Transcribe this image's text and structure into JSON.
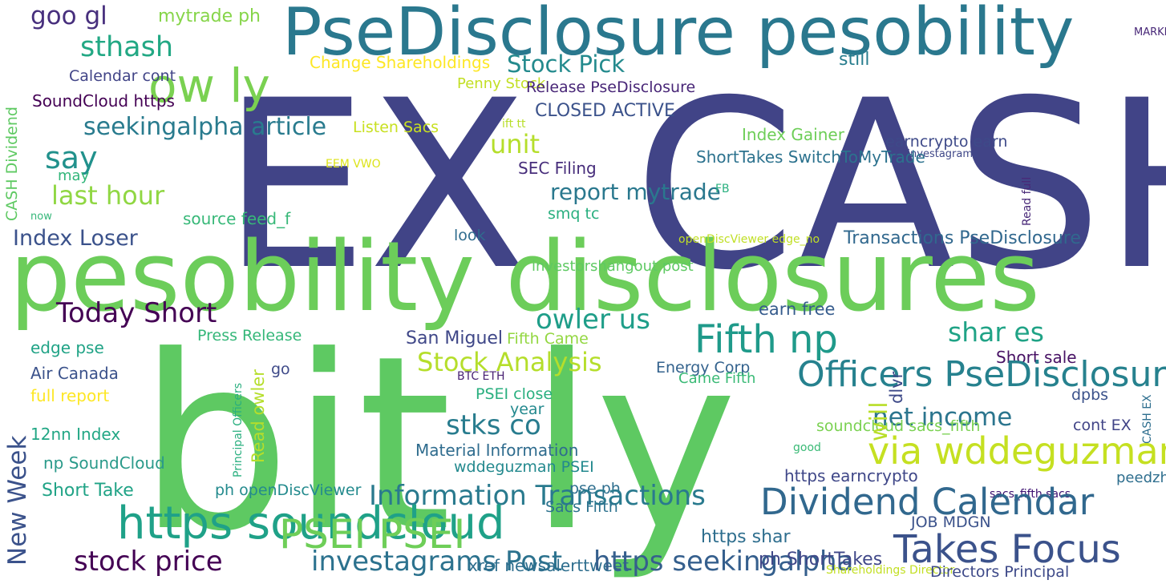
{
  "words": [
    {
      "id": "ex",
      "text": "EX"
    },
    {
      "id": "cash",
      "text": "CASH"
    },
    {
      "id": "bitly",
      "text": "bit ly"
    },
    {
      "id": "pesobility-disclosures",
      "text": "pesobility disclosures"
    },
    {
      "id": "psedisclosure-pesobility",
      "text": "PseDisclosure pesobility"
    },
    {
      "id": "goo-gl",
      "text": "goo gl"
    },
    {
      "id": "mytrade-ph",
      "text": "mytrade ph"
    },
    {
      "id": "sthash",
      "text": "sthash"
    },
    {
      "id": "ow-ly",
      "text": "ow ly"
    },
    {
      "id": "calendar-cont",
      "text": "Calendar cont"
    },
    {
      "id": "soundcloud-https",
      "text": "SoundCloud https"
    },
    {
      "id": "seekingalpha-article",
      "text": "seekingalpha article"
    },
    {
      "id": "say",
      "text": "say"
    },
    {
      "id": "may",
      "text": "may"
    },
    {
      "id": "last-hour",
      "text": "last hour"
    },
    {
      "id": "now",
      "text": "now"
    },
    {
      "id": "source-feed-f",
      "text": "source feed_f"
    },
    {
      "id": "index-loser",
      "text": "Index Loser"
    },
    {
      "id": "cash-dividend",
      "text": "CASH Dividend"
    },
    {
      "id": "new-week",
      "text": "New Week"
    },
    {
      "id": "change-shareholdings",
      "text": "Change Shareholdings"
    },
    {
      "id": "stock-pick",
      "text": "Stock Pick"
    },
    {
      "id": "penny-stock",
      "text": "Penny Stock"
    },
    {
      "id": "release-psedisclosure",
      "text": "Release PseDisclosure"
    },
    {
      "id": "closed-active",
      "text": "CLOSED ACTIVE"
    },
    {
      "id": "listen-sacs",
      "text": "Listen Sacs"
    },
    {
      "id": "ift-tt",
      "text": "ift tt"
    },
    {
      "id": "unit",
      "text": "unit"
    },
    {
      "id": "eem-vwo",
      "text": "EEM VWO"
    },
    {
      "id": "sec-filing",
      "text": "SEC Filing"
    },
    {
      "id": "report-mytrade",
      "text": "report mytrade"
    },
    {
      "id": "smq-tc",
      "text": "smq tc"
    },
    {
      "id": "look",
      "text": "look"
    },
    {
      "id": "investorshangout-post",
      "text": "investorshangout post"
    },
    {
      "id": "still",
      "text": "still"
    },
    {
      "id": "market-closed",
      "text": "MARKET CLOSED"
    },
    {
      "id": "index-gainer",
      "text": "Index Gainer"
    },
    {
      "id": "earncrypto-earn",
      "text": "earncrypto earn"
    },
    {
      "id": "via-investagrams",
      "text": "via investagrams"
    },
    {
      "id": "shorttakes-switchtomytrade",
      "text": "ShortTakes SwitchToMyTrade"
    },
    {
      "id": "fb",
      "text": "FB"
    },
    {
      "id": "opendiscviewer-edge-no",
      "text": "openDiscViewer edge_no"
    },
    {
      "id": "transactions-psedisclosure",
      "text": "Transactions PseDisclosure"
    },
    {
      "id": "read-full",
      "text": "Read full"
    },
    {
      "id": "cash-ex",
      "text": "CASH EX"
    },
    {
      "id": "today-short",
      "text": "Today Short"
    },
    {
      "id": "earn-free",
      "text": "earn free"
    },
    {
      "id": "owler-us",
      "text": "owler us"
    },
    {
      "id": "fifth-np",
      "text": "Fifth np"
    },
    {
      "id": "shar-es",
      "text": "shar es"
    },
    {
      "id": "press-release",
      "text": "Press Release"
    },
    {
      "id": "san-miguel",
      "text": "San Miguel"
    },
    {
      "id": "fifth-came",
      "text": "Fifth Came"
    },
    {
      "id": "edge-pse",
      "text": "edge pse"
    },
    {
      "id": "short-sale",
      "text": "Short sale"
    },
    {
      "id": "stock-analysis",
      "text": "Stock Analysis"
    },
    {
      "id": "officers-psedisclosure",
      "text": "Officers PseDisclosure"
    },
    {
      "id": "go",
      "text": "go"
    },
    {
      "id": "energy-corp",
      "text": "Energy Corp"
    },
    {
      "id": "air-canada",
      "text": "Air Canada"
    },
    {
      "id": "btc-eth",
      "text": "BTC ETH"
    },
    {
      "id": "came-fifth",
      "text": "Came Fifth"
    },
    {
      "id": "full-report",
      "text": "full report"
    },
    {
      "id": "psei-close",
      "text": "PSEI close"
    },
    {
      "id": "dpbs",
      "text": "dpbs"
    },
    {
      "id": "year",
      "text": "year"
    },
    {
      "id": "stks-co",
      "text": "stks co"
    },
    {
      "id": "net-income",
      "text": "net income"
    },
    {
      "id": "soundcloud-sacs-fifth",
      "text": "soundcloud sacs_fifth"
    },
    {
      "id": "cont-ex",
      "text": "cont EX"
    },
    {
      "id": "12nn-index",
      "text": "12nn Index"
    },
    {
      "id": "via-wddeguzman",
      "text": "via wddeguzman"
    },
    {
      "id": "material-information",
      "text": "Material Information"
    },
    {
      "id": "good",
      "text": "good"
    },
    {
      "id": "np-soundcloud",
      "text": "np SoundCloud"
    },
    {
      "id": "wddeguzman-psei",
      "text": "wddeguzman PSEI"
    },
    {
      "id": "https-earncrypto",
      "text": "https earncrypto"
    },
    {
      "id": "peedzhay-blogspot",
      "text": "peedzhay blogspot"
    },
    {
      "id": "short-take",
      "text": "Short Take"
    },
    {
      "id": "ph-opendiscviewer",
      "text": "ph openDiscViewer"
    },
    {
      "id": "pse-ph",
      "text": "pse ph"
    },
    {
      "id": "sacs-fifth-sacs",
      "text": "sacs_fifth sacs"
    },
    {
      "id": "information-transactions",
      "text": "Information Transactions"
    },
    {
      "id": "dividend-calendar",
      "text": "Dividend Calendar"
    },
    {
      "id": "https-soundcloud",
      "text": "https soundcloud"
    },
    {
      "id": "sacs-fifth",
      "text": "Sacs Fifth"
    },
    {
      "id": "job-mdgn",
      "text": "JOB MDGN"
    },
    {
      "id": "psei-psei",
      "text": "PSEI PSEI"
    },
    {
      "id": "https-shar",
      "text": "https shar"
    },
    {
      "id": "takes-focus",
      "text": "Takes Focus"
    },
    {
      "id": "stock-price",
      "text": "stock price"
    },
    {
      "id": "investagrams-post",
      "text": "investagrams Post"
    },
    {
      "id": "xref-newsalerttweet",
      "text": "xref newsalerttweet"
    },
    {
      "id": "https-seekingalpha",
      "text": "https seekingalpha"
    },
    {
      "id": "ph-shorttakes",
      "text": "ph ShortTakes"
    },
    {
      "id": "shareholdings-director",
      "text": "Shareholdings Director"
    },
    {
      "id": "directors-principal",
      "text": "Directors Principal"
    },
    {
      "id": "principal-officers",
      "text": "Principal Officers"
    },
    {
      "id": "read-owler",
      "text": "Read owler"
    },
    {
      "id": "will",
      "text": "will"
    },
    {
      "id": "dlvr",
      "text": "dlvr"
    }
  ]
}
